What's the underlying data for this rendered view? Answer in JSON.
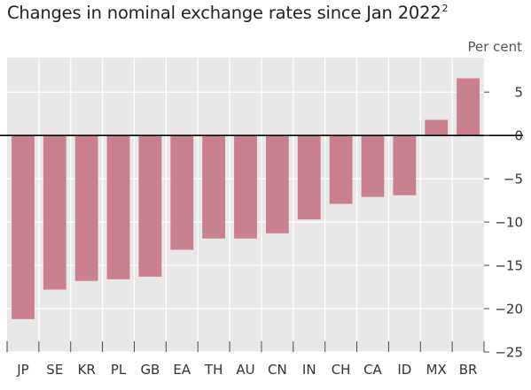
{
  "chart_data": {
    "type": "bar",
    "title": "Changes in nominal exchange rates since Jan 2022",
    "title_sup": "2",
    "ylabel": "Per cent",
    "xlabel": "",
    "categories": [
      "JP",
      "SE",
      "KR",
      "PL",
      "GB",
      "EA",
      "TH",
      "AU",
      "CN",
      "IN",
      "CH",
      "CA",
      "ID",
      "MX",
      "BR"
    ],
    "values": [
      -21.2,
      -17.8,
      -16.8,
      -16.6,
      -16.3,
      -13.2,
      -11.9,
      -11.9,
      -11.3,
      -9.7,
      -7.9,
      -7.1,
      -6.9,
      1.8,
      6.6
    ],
    "ylim": [
      -25,
      9
    ],
    "yticks": [
      5,
      0,
      -5,
      -10,
      -15,
      -20,
      -25
    ],
    "ytick_labels": [
      "5",
      "0",
      "−5",
      "−10",
      "−15",
      "−20",
      "−25"
    ],
    "grid": true,
    "legend": "none",
    "colors": {
      "bar": "#c9808f",
      "background": "#e8e8e8",
      "grid": "#ffffff",
      "zero_line": "#000000"
    }
  }
}
